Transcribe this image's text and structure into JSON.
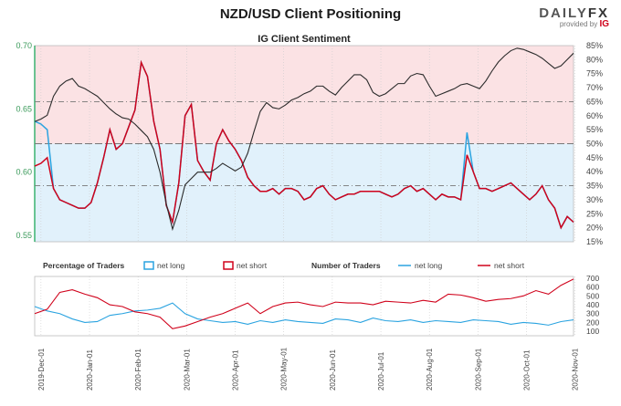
{
  "title": "NZD/USD Client Positioning",
  "brand": {
    "logo_main": "DAILY",
    "logo_accent": "FX",
    "provided_by": "provided by",
    "ig": "IG"
  },
  "chart_data": [
    {
      "type": "line",
      "title": "IG Client Sentiment",
      "x_ticks": [
        "2019-Dec-01",
        "2020-Jan-01",
        "2020-Feb-01",
        "2020-Mar-01",
        "2020-Apr-01",
        "2020-May-01",
        "2020-Jun-01",
        "2020-Jul-01",
        "2020-Aug-01",
        "2020-Sep-01",
        "2020-Oct-01",
        "2020-Nov-01"
      ],
      "left_axis": {
        "ylim": [
          0.545,
          0.7
        ],
        "ticks": [
          "0.70",
          "0.65",
          "0.60",
          "0.55"
        ]
      },
      "right_axis": {
        "ylim": [
          15,
          85
        ],
        "ticks": [
          "85%",
          "80%",
          "75%",
          "70%",
          "65%",
          "60%",
          "55%",
          "50%",
          "45%",
          "40%",
          "35%",
          "30%",
          "25%",
          "20%",
          "15%"
        ]
      },
      "series": [
        {
          "name": "NZD/USD",
          "axis": "left",
          "color": "#2b2b2b",
          "x": [
            0,
            4,
            8,
            12,
            16,
            20,
            24,
            28,
            32,
            36,
            40,
            44,
            48,
            52,
            56,
            60,
            64,
            68,
            72,
            76,
            80,
            84,
            88,
            92,
            96,
            100,
            104,
            108,
            112,
            116,
            120,
            124,
            128,
            132,
            136,
            140,
            144,
            148,
            152,
            156,
            160,
            164,
            168,
            172,
            176,
            180,
            184,
            188,
            192,
            196,
            200,
            204,
            208,
            212,
            216,
            220,
            224,
            228,
            232,
            236,
            240,
            244,
            248,
            252,
            256,
            260,
            264,
            268,
            272,
            276,
            280,
            284,
            288,
            292,
            296,
            300,
            304,
            308,
            312,
            316,
            320,
            324,
            328,
            332,
            336,
            340,
            344
          ],
          "y": [
            0.64,
            0.642,
            0.645,
            0.66,
            0.668,
            0.672,
            0.674,
            0.668,
            0.666,
            0.663,
            0.66,
            0.655,
            0.65,
            0.646,
            0.643,
            0.642,
            0.638,
            0.633,
            0.628,
            0.618,
            0.6,
            0.575,
            0.555,
            0.57,
            0.59,
            0.595,
            0.6,
            0.6,
            0.6,
            0.603,
            0.607,
            0.604,
            0.601,
            0.604,
            0.615,
            0.632,
            0.648,
            0.655,
            0.651,
            0.65,
            0.653,
            0.657,
            0.659,
            0.662,
            0.664,
            0.668,
            0.668,
            0.664,
            0.661,
            0.667,
            0.672,
            0.677,
            0.677,
            0.673,
            0.663,
            0.66,
            0.662,
            0.666,
            0.67,
            0.67,
            0.676,
            0.678,
            0.677,
            0.668,
            0.66,
            0.662,
            0.664,
            0.666,
            0.669,
            0.67,
            0.668,
            0.666,
            0.672,
            0.68,
            0.687,
            0.692,
            0.696,
            0.698,
            0.697,
            0.695,
            0.693,
            0.69,
            0.686,
            0.682,
            0.684,
            0.689,
            0.694
          ]
        },
        {
          "name": "Net-long %",
          "axis": "right",
          "color": "#2aa3e0",
          "x": [
            0,
            4,
            8,
            12,
            16,
            20,
            24,
            28,
            32,
            36,
            40,
            44,
            48,
            52,
            56,
            60,
            64,
            68,
            72,
            76,
            80,
            84,
            88,
            92,
            96,
            100,
            104,
            108,
            112,
            116,
            120,
            124,
            128,
            132,
            136,
            140,
            144,
            148,
            152,
            156,
            160,
            164,
            168,
            172,
            176,
            180,
            184,
            188,
            192,
            196,
            200,
            204,
            208,
            212,
            216,
            220,
            224,
            228,
            232,
            236,
            240,
            244,
            248,
            252,
            256,
            260,
            264,
            268,
            272,
            276,
            280,
            284,
            288,
            292,
            296,
            300,
            304,
            308,
            312,
            316,
            320,
            324,
            328,
            332,
            336,
            340,
            344
          ],
          "y": [
            58,
            57,
            55,
            34,
            30,
            29,
            28,
            27,
            27,
            29,
            36,
            45,
            55,
            48,
            50,
            56,
            62,
            79,
            74,
            58,
            48,
            28,
            22,
            36,
            60,
            64,
            44,
            40,
            37,
            50,
            55,
            51,
            48,
            44,
            38,
            35,
            33,
            33,
            34,
            32,
            34,
            34,
            33,
            30,
            31,
            34,
            35,
            32,
            30,
            31,
            32,
            32,
            33,
            33,
            33,
            33,
            32,
            31,
            32,
            34,
            35,
            33,
            34,
            32,
            30,
            32,
            31,
            31,
            30,
            54,
            40,
            34,
            34,
            33,
            34,
            35,
            36,
            34,
            32,
            30,
            32,
            35,
            30,
            27,
            20,
            24,
            22
          ]
        },
        {
          "name": "Net-short %",
          "axis": "right",
          "color": "#d0021b",
          "x": [
            0,
            4,
            8,
            12,
            16,
            20,
            24,
            28,
            32,
            36,
            40,
            44,
            48,
            52,
            56,
            60,
            64,
            68,
            72,
            76,
            80,
            84,
            88,
            92,
            96,
            100,
            104,
            108,
            112,
            116,
            120,
            124,
            128,
            132,
            136,
            140,
            144,
            148,
            152,
            156,
            160,
            164,
            168,
            172,
            176,
            180,
            184,
            188,
            192,
            196,
            200,
            204,
            208,
            212,
            216,
            220,
            224,
            228,
            232,
            236,
            240,
            244,
            248,
            252,
            256,
            260,
            264,
            268,
            272,
            276,
            280,
            284,
            288,
            292,
            296,
            300,
            304,
            308,
            312,
            316,
            320,
            324,
            328,
            332,
            336,
            340,
            344
          ],
          "y": [
            42,
            43,
            45,
            34,
            30,
            29,
            28,
            27,
            27,
            29,
            36,
            45,
            55,
            48,
            50,
            56,
            62,
            79,
            74,
            58,
            48,
            28,
            22,
            36,
            60,
            64,
            44,
            40,
            37,
            50,
            55,
            51,
            48,
            44,
            38,
            35,
            33,
            33,
            34,
            32,
            34,
            34,
            33,
            30,
            31,
            34,
            35,
            32,
            30,
            31,
            32,
            32,
            33,
            33,
            33,
            33,
            32,
            31,
            32,
            34,
            35,
            33,
            34,
            32,
            30,
            32,
            31,
            31,
            30,
            46,
            40,
            34,
            34,
            33,
            34,
            35,
            36,
            34,
            32,
            30,
            32,
            35,
            30,
            27,
            20,
            24,
            22
          ]
        }
      ]
    },
    {
      "type": "line",
      "title": "",
      "legend": {
        "pct_label": "Percentage of Traders",
        "pct_long": "net long",
        "pct_short": "net short",
        "num_label": "Number of Traders",
        "num_long": "net long",
        "num_short": "net short"
      },
      "right_axis": {
        "ylim": [
          50,
          720
        ],
        "ticks": [
          "700",
          "600",
          "500",
          "400",
          "300",
          "200",
          "100"
        ]
      },
      "series": [
        {
          "name": "net long",
          "color": "#2aa3e0",
          "x": [
            0,
            8,
            16,
            24,
            32,
            40,
            48,
            56,
            64,
            72,
            80,
            88,
            96,
            104,
            112,
            120,
            128,
            136,
            144,
            152,
            160,
            168,
            176,
            184,
            192,
            200,
            208,
            216,
            224,
            232,
            240,
            248,
            256,
            264,
            272,
            280,
            288,
            296,
            304,
            312,
            320,
            328,
            336,
            344
          ],
          "y": [
            380,
            330,
            300,
            240,
            200,
            210,
            280,
            300,
            330,
            340,
            360,
            420,
            300,
            240,
            220,
            200,
            210,
            180,
            220,
            200,
            230,
            210,
            200,
            190,
            240,
            230,
            200,
            250,
            220,
            210,
            230,
            200,
            220,
            210,
            200,
            230,
            220,
            210,
            180,
            200,
            190,
            170,
            210,
            230
          ]
        },
        {
          "name": "net short",
          "color": "#d0021b",
          "x": [
            0,
            8,
            16,
            24,
            32,
            40,
            48,
            56,
            64,
            72,
            80,
            88,
            96,
            104,
            112,
            120,
            128,
            136,
            144,
            152,
            160,
            168,
            176,
            184,
            192,
            200,
            208,
            216,
            224,
            232,
            240,
            248,
            256,
            264,
            272,
            280,
            288,
            296,
            304,
            312,
            320,
            328,
            336,
            344
          ],
          "y": [
            300,
            350,
            540,
            570,
            520,
            480,
            400,
            380,
            320,
            300,
            260,
            130,
            160,
            210,
            260,
            300,
            360,
            420,
            300,
            380,
            420,
            430,
            400,
            380,
            430,
            420,
            420,
            400,
            440,
            430,
            420,
            450,
            430,
            520,
            510,
            480,
            440,
            460,
            470,
            500,
            560,
            520,
            620,
            690
          ]
        }
      ]
    }
  ]
}
